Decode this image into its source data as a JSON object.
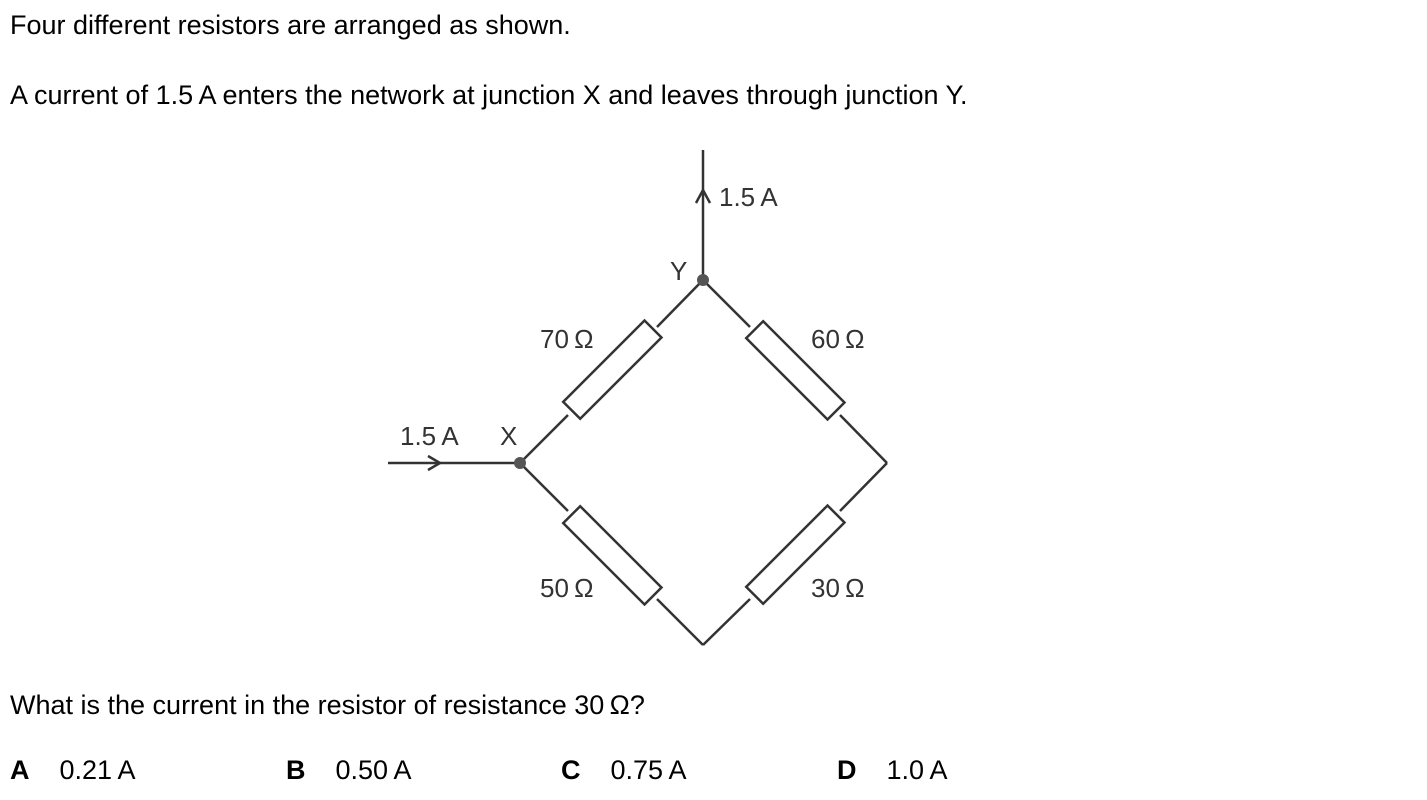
{
  "question": {
    "intro_line_1": "Four different resistors are arranged as shown.",
    "intro_line_2": "A current of 1.5 A enters the network at junction X and leaves through junction Y.",
    "prompt": "What is the current in the resistor of resistance 30 Ω?"
  },
  "circuit": {
    "input_current_label": "1.5 A",
    "output_current_label": "1.5 A",
    "junction_x_label": "X",
    "junction_y_label": "Y",
    "resistor_70_label": "70 Ω",
    "resistor_60_label": "60 Ω",
    "resistor_50_label": "50 Ω",
    "resistor_30_label": "30 Ω"
  },
  "options": [
    {
      "letter": "A",
      "text": "0.21 A"
    },
    {
      "letter": "B",
      "text": "0.50 A"
    },
    {
      "letter": "C",
      "text": "0.75 A"
    },
    {
      "letter": "D",
      "text": "1.0 A"
    }
  ]
}
